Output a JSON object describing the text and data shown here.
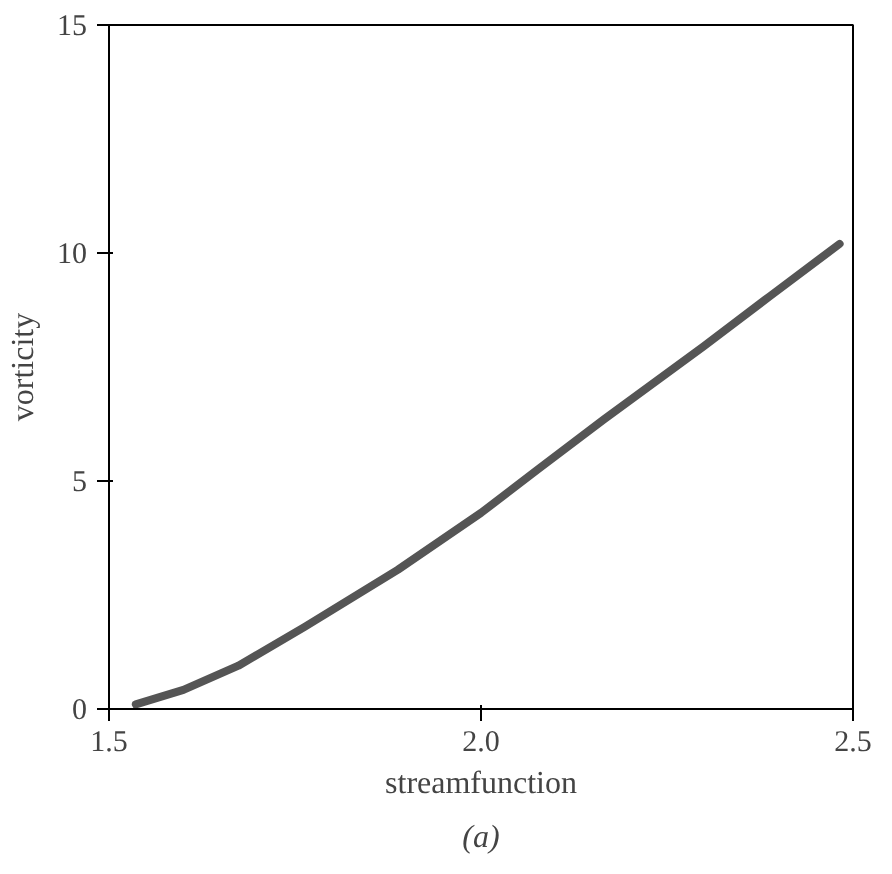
{
  "chart_data": {
    "type": "line",
    "xlabel": "streamfunction",
    "ylabel": "vorticity",
    "x": [
      1.536,
      1.6,
      1.674,
      1.763,
      1.888,
      2.0,
      2.076,
      2.165,
      2.299,
      2.388,
      2.482
    ],
    "series": [
      {
        "color": "#555555",
        "values": [
          0.1,
          0.42,
          0.95,
          1.8,
          3.05,
          4.3,
          5.25,
          6.35,
          7.95,
          9.05,
          10.2
        ]
      }
    ],
    "xlim": [
      1.5,
      2.5
    ],
    "ylim": [
      0,
      15
    ],
    "xticks": [
      1.5,
      {
        "value": 2,
        "label": "2.0"
      },
      2.5
    ],
    "yticks": [
      0,
      5,
      10,
      15
    ],
    "grid": false,
    "marker": "none",
    "line_style": "solid",
    "annotations": [
      "(a)"
    ]
  }
}
